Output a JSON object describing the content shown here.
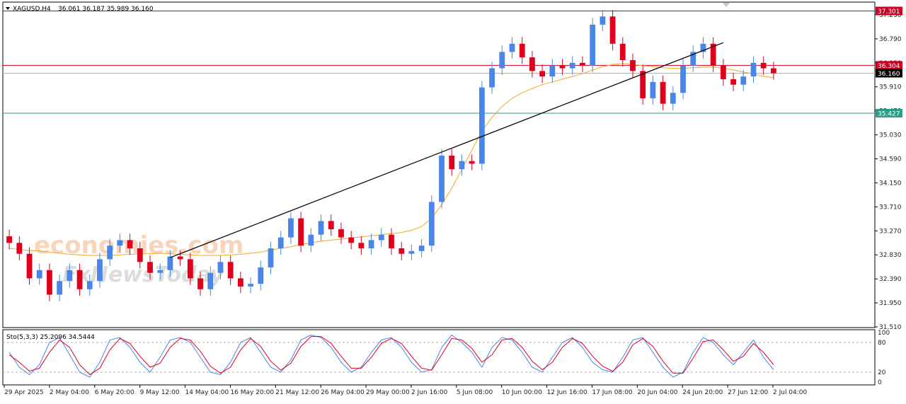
{
  "header": {
    "symbol": "XAGUSD,H4",
    "ohlc": "36.061 36.187 35.989 36.160"
  },
  "watermark": {
    "line1": "economies.com",
    "line2": "FxNewsToday"
  },
  "colors": {
    "bull": "#4a86e8",
    "bear": "#e0001b",
    "ma": "#f5a623",
    "resistance": "#cc0022",
    "support": "#2e9c8a",
    "trendline": "#000000",
    "stoch_main": "#4a86e8",
    "stoch_signal": "#e0001b"
  },
  "chart_data": {
    "type": "candlestick",
    "ylim": [
      31.51,
      37.45
    ],
    "y_ticks": [
      "37.230",
      "36.790",
      "36.350",
      "35.910",
      "35.470",
      "35.030",
      "34.590",
      "34.150",
      "33.710",
      "33.270",
      "32.830",
      "32.390",
      "31.950",
      "31.510"
    ],
    "x_ticks": [
      "29 Apr 2025",
      "2 May 04:00",
      "6 May 20:00",
      "9 May 12:00",
      "14 May 04:00",
      "16 May 20:00",
      "21 May 12:00",
      "26 May 04:00",
      "29 May 00:00",
      "2 Jun 16:00",
      "5 Jun 08:00",
      "10 Jun 00:00",
      "12 Jun 16:00",
      "17 Jun 08:00",
      "20 Jun 04:00",
      "24 Jun 20:00",
      "27 Jun 12:00",
      "2 Jul 04:00"
    ],
    "levels": [
      {
        "label": "37.301",
        "value": 37.301,
        "kind": "resistance"
      },
      {
        "label": "36.304",
        "value": 36.304,
        "kind": "resistance"
      },
      {
        "label": "36.160",
        "value": 36.16,
        "kind": "current"
      },
      {
        "label": "35.427",
        "value": 35.427,
        "kind": "support"
      }
    ],
    "trendline": {
      "start": {
        "index": 16,
        "value": 32.78
      },
      "end": {
        "index": 71,
        "value": 36.72
      }
    },
    "closes": [
      33.05,
      32.85,
      32.4,
      32.55,
      32.1,
      32.35,
      32.55,
      32.2,
      32.35,
      32.75,
      33.0,
      33.1,
      32.95,
      32.7,
      32.5,
      32.55,
      32.8,
      32.75,
      32.4,
      32.2,
      32.5,
      32.7,
      32.4,
      32.25,
      32.3,
      32.6,
      32.95,
      33.15,
      33.5,
      33.0,
      33.2,
      33.45,
      33.3,
      33.15,
      33.05,
      32.95,
      33.1,
      33.2,
      32.95,
      32.85,
      32.9,
      33.0,
      33.8,
      34.65,
      34.4,
      34.55,
      34.5,
      35.9,
      36.25,
      36.55,
      36.7,
      36.45,
      36.2,
      36.1,
      36.3,
      36.25,
      36.35,
      36.3,
      37.05,
      37.2,
      36.7,
      36.4,
      36.2,
      35.7,
      36.0,
      35.6,
      35.8,
      36.3,
      36.55,
      36.7,
      36.3,
      36.05,
      35.95,
      36.1,
      36.35,
      36.25,
      36.16
    ],
    "ma": [
      32.95,
      32.93,
      32.91,
      32.9,
      32.88,
      32.86,
      32.84,
      32.83,
      32.82,
      32.82,
      32.82,
      32.83,
      32.84,
      32.85,
      32.85,
      32.86,
      32.85,
      32.84,
      32.83,
      32.82,
      32.82,
      32.82,
      32.83,
      32.84,
      32.86,
      32.88,
      32.92,
      32.95,
      32.98,
      33.02,
      33.05,
      33.08,
      33.1,
      33.12,
      33.14,
      33.16,
      33.18,
      33.2,
      33.22,
      33.24,
      33.28,
      33.35,
      33.5,
      33.75,
      34.05,
      34.4,
      34.75,
      35.1,
      35.35,
      35.55,
      35.7,
      35.8,
      35.88,
      35.95,
      36.0,
      36.05,
      36.1,
      36.15,
      36.22,
      36.28,
      36.32,
      36.34,
      36.32,
      36.3,
      36.28,
      36.26,
      36.25,
      36.25,
      36.26,
      36.27,
      36.27,
      36.25,
      36.22,
      36.18,
      36.15,
      36.1,
      36.08
    ],
    "stochastic": {
      "label": "Sto(5,3,3) 25.2096 34.5444",
      "levels": [
        80,
        20
      ],
      "y_ticks": [
        "100",
        "80",
        "20",
        "0"
      ],
      "main": [
        60,
        30,
        15,
        35,
        80,
        90,
        55,
        20,
        10,
        40,
        85,
        90,
        70,
        40,
        20,
        50,
        85,
        90,
        80,
        50,
        20,
        15,
        40,
        80,
        90,
        60,
        30,
        20,
        45,
        85,
        95,
        90,
        70,
        40,
        20,
        30,
        60,
        85,
        90,
        70,
        40,
        20,
        25,
        70,
        95,
        80,
        60,
        30,
        70,
        90,
        85,
        60,
        30,
        20,
        50,
        80,
        90,
        70,
        40,
        25,
        20,
        50,
        85,
        90,
        60,
        30,
        10,
        20,
        60,
        90,
        80,
        55,
        35,
        60,
        85,
        50,
        25
      ],
      "signal": [
        55,
        40,
        22,
        28,
        60,
        85,
        70,
        35,
        15,
        28,
        65,
        88,
        78,
        52,
        30,
        38,
        70,
        88,
        85,
        62,
        32,
        18,
        30,
        65,
        88,
        72,
        42,
        24,
        38,
        72,
        92,
        92,
        78,
        52,
        28,
        28,
        50,
        78,
        88,
        78,
        52,
        28,
        24,
        55,
        88,
        85,
        68,
        40,
        55,
        85,
        88,
        70,
        42,
        25,
        40,
        70,
        88,
        78,
        52,
        32,
        22,
        40,
        75,
        88,
        72,
        42,
        18,
        18,
        48,
        82,
        85,
        65,
        42,
        52,
        78,
        60,
        35
      ]
    }
  }
}
